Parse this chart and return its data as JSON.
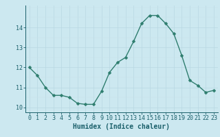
{
  "x": [
    0,
    1,
    2,
    3,
    4,
    5,
    6,
    7,
    8,
    9,
    10,
    11,
    12,
    13,
    14,
    15,
    16,
    17,
    18,
    19,
    20,
    21,
    22,
    23
  ],
  "y": [
    12.0,
    11.6,
    11.0,
    10.6,
    10.6,
    10.5,
    10.2,
    10.15,
    10.15,
    10.8,
    11.75,
    12.25,
    12.5,
    13.3,
    14.2,
    14.6,
    14.6,
    14.2,
    13.7,
    12.6,
    11.35,
    11.1,
    10.75,
    10.85
  ],
  "line_color": "#2e7d6e",
  "marker": "D",
  "markersize": 2.5,
  "linewidth": 1.0,
  "bg_color": "#cce8f0",
  "grid_color_major": "#b8d8e2",
  "grid_color_minor": "#c8e2ea",
  "xlabel": "Humidex (Indice chaleur)",
  "xlabel_fontsize": 7,
  "xlabel_color": "#1a5f6a",
  "tick_color": "#1a5f6a",
  "tick_fontsize": 6,
  "xlim": [
    -0.5,
    23.5
  ],
  "ylim": [
    9.75,
    15.1
  ],
  "yticks": [
    10,
    11,
    12,
    13,
    14
  ],
  "xticks": [
    0,
    1,
    2,
    3,
    4,
    5,
    6,
    7,
    8,
    9,
    10,
    11,
    12,
    13,
    14,
    15,
    16,
    17,
    18,
    19,
    20,
    21,
    22,
    23
  ]
}
